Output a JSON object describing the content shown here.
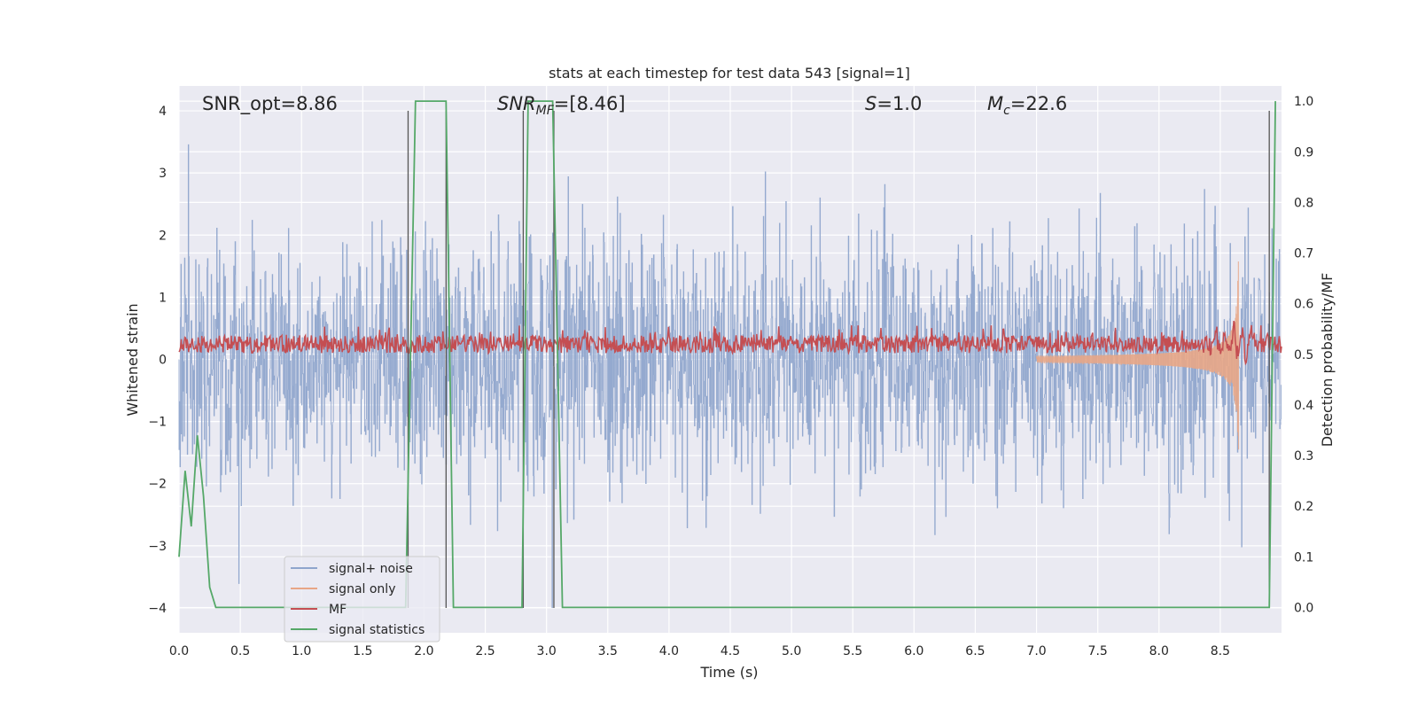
{
  "chart_data": {
    "type": "line",
    "title": "stats at each timestep for test data 543 [signal=1]",
    "xlabel": "Time (s)",
    "ylabel_left": "Whitened strain",
    "ylabel_right": "Detection probability/MF",
    "xlim": [
      0,
      9.0
    ],
    "ylim_left": [
      -4.4,
      4.4
    ],
    "ylim_right": [
      -0.05,
      1.03
    ],
    "x_ticks": [
      "0.0",
      "0.5",
      "1.0",
      "1.5",
      "2.0",
      "2.5",
      "3.0",
      "3.5",
      "4.0",
      "4.5",
      "5.0",
      "5.5",
      "6.0",
      "6.5",
      "7.0",
      "7.5",
      "8.0",
      "8.5"
    ],
    "y_ticks_left": [
      "4",
      "3",
      "2",
      "1",
      "0",
      "−1",
      "−2",
      "−3",
      "−4"
    ],
    "y_ticks_right": [
      "1.0",
      "0.9",
      "0.8",
      "0.7",
      "0.6",
      "0.5",
      "0.4",
      "0.3",
      "0.2",
      "0.1",
      "0.0"
    ],
    "grid": true,
    "annotations": {
      "snr_opt": "SNR_opt=8.86",
      "snr_mf_sym": "SNR",
      "snr_mf_sub": "MF",
      "snr_mf_val": "=[8.46]",
      "s_sym": "S",
      "s_val": "=1.0",
      "mc_sym": "M",
      "mc_sub": "c",
      "mc_val": "=22.6"
    },
    "legend_placement": "lower-left",
    "series": [
      {
        "name": "signal+ noise",
        "color": "#8fa5cc",
        "description": "whitened noisy strain, roughly within ±3 (peaks to ±4)"
      },
      {
        "name": "signal only",
        "color": "#e8a686",
        "description": "chirp growing toward merger near t≈8.65 s, peak ≈ +1.9 / −1.8"
      },
      {
        "name": "MF",
        "color": "#c44e52",
        "description": "matched-filter output on right axis, ~0.52 baseline"
      },
      {
        "name": "signal statistics",
        "color": "#55a868",
        "x": [
          0.0,
          0.05,
          0.1,
          0.15,
          0.2,
          0.25,
          0.3,
          1.85,
          1.93,
          2.18,
          2.24,
          2.8,
          2.85,
          3.05,
          3.13,
          3.2,
          8.9,
          8.95
        ],
        "y": [
          0.1,
          0.27,
          0.16,
          0.34,
          0.22,
          0.04,
          0.0,
          0.0,
          1.0,
          1.0,
          0.0,
          0.0,
          1.0,
          1.0,
          0.0,
          0.0,
          0.0,
          1.0
        ]
      }
    ],
    "vertical_markers": [
      1.87,
      2.18,
      2.81,
      3.06,
      8.9
    ]
  }
}
